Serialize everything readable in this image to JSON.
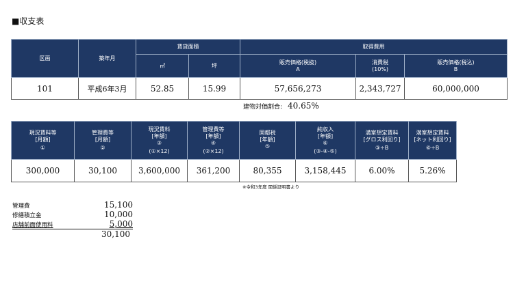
{
  "title": "■収支表",
  "table1": {
    "h_ku": "区画",
    "h_chiku": "築年月",
    "h_area": "賃貸面積",
    "h_sqm": "㎡",
    "h_tsubo": "坪",
    "h_cost": "取得費用",
    "h_price_ex": "販売価格(税抜)",
    "h_price_ex_sym": "A",
    "h_tax": "消費税",
    "h_tax_rate": "(10%)",
    "h_price_in": "販売価格(税込)",
    "h_price_in_sym": "B",
    "row": {
      "unit": "101",
      "built": "平成6年3月",
      "sqm": "52.85",
      "tsubo": "15.99",
      "price_ex": "57,656,273",
      "tax": "2,343,727",
      "price_in": "60,000,000"
    }
  },
  "ratio": {
    "label": "建物対価割合:",
    "value": "40.65%"
  },
  "table2": {
    "headers": [
      {
        "l1": "現況賃料等",
        "l2": "[月額]",
        "l3": "",
        "l4": "①"
      },
      {
        "l1": "管理費等",
        "l2": "[月額]",
        "l3": "",
        "l4": "②"
      },
      {
        "l1": "現況賃料",
        "l2": "[年額]",
        "l3": "③",
        "l4": "(①×12)"
      },
      {
        "l1": "管理費等",
        "l2": "[年額]",
        "l3": "④",
        "l4": "(②×12)"
      },
      {
        "l1": "固都税",
        "l2": "[年額]",
        "l3": "⑤",
        "l4": ""
      },
      {
        "l1": "純収入",
        "l2": "[年額]",
        "l3": "⑥",
        "l4": "(③-④-⑤)"
      },
      {
        "l1": "満室想定賃料",
        "l2": "[グロス利回り]",
        "l3": "",
        "l4": "③÷B"
      },
      {
        "l1": "満室想定賃料",
        "l2": "[ネット利回り]",
        "l3": "",
        "l4": "⑥÷B"
      }
    ],
    "values": [
      "300,000",
      "30,100",
      "3,600,000",
      "361,200",
      "80,355",
      "3,158,445",
      "6.00%",
      "5.26%"
    ]
  },
  "note": "※令和3年度 関係証明書より",
  "breakdown": {
    "items": [
      {
        "label": "管理費",
        "amount": "15,100"
      },
      {
        "label": "修繕積立金",
        "amount": "10,000"
      },
      {
        "label": "店舗前面使用料",
        "amount": "5,000"
      }
    ],
    "total": "30,100"
  }
}
